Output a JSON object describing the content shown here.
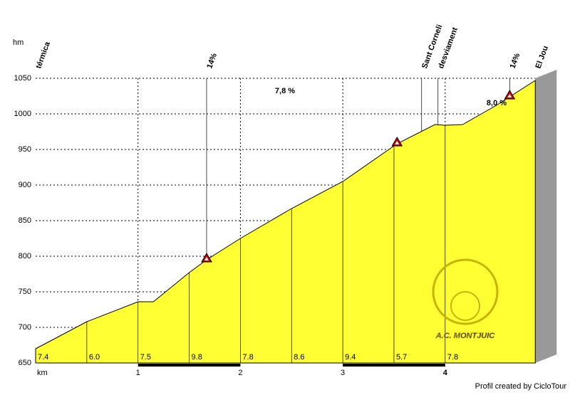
{
  "chart_data": {
    "type": "area",
    "color": "#ffff33",
    "y_unit": "hm",
    "x_unit": "km",
    "x": [
      0,
      0.5,
      1.0,
      1.15,
      1.5,
      1.67,
      2.0,
      2.5,
      3.0,
      3.53,
      3.9,
      4.0,
      4.17,
      4.5,
      4.88
    ],
    "values": [
      670,
      708,
      736,
      736,
      777,
      795,
      825,
      867,
      905,
      958,
      985,
      984,
      985,
      1012,
      1047
    ],
    "xlim": [
      0,
      4.88
    ],
    "ylim": [
      650,
      1050
    ],
    "xticks": [
      1,
      2,
      3,
      4
    ],
    "yticks": [
      650,
      700,
      750,
      800,
      850,
      900,
      950,
      1000,
      1050
    ],
    "grid": true,
    "points": [
      {
        "x": 0,
        "label": "térmica"
      },
      {
        "x": 1.67,
        "label": "14%"
      },
      {
        "x": 3.77,
        "label": "Sant Corneli"
      },
      {
        "x": 3.93,
        "label": "desviament"
      },
      {
        "x": 4.63,
        "label": "14%"
      },
      {
        "x": 4.88,
        "label": "El Jou"
      }
    ],
    "steep_points": [
      1.67,
      3.53,
      4.63
    ],
    "segment_labels": [
      "7.4",
      "6.0",
      "7.5",
      "9.8",
      "7.8",
      "8.6",
      "9.4",
      "5.7",
      "7.8"
    ],
    "segment_step": 0.5,
    "annotations": [
      "7,8 %",
      "8,0 %"
    ],
    "watermark": "A.C. MONTJUIC",
    "credit": "Profil created by CicloTour"
  }
}
